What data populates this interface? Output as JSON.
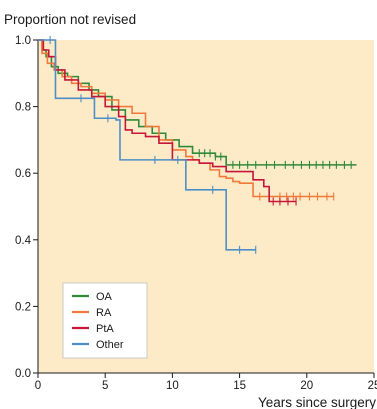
{
  "chart_data": {
    "type": "line",
    "subtype": "kaplan-meier-step",
    "title": "",
    "ylabel": "Proportion not revised",
    "xlabel": "Years since surgery",
    "xlim": [
      0,
      25
    ],
    "ylim": [
      0.0,
      1.0
    ],
    "x_ticks": [
      0,
      5,
      10,
      15,
      20,
      25
    ],
    "x_tick_labels": [
      "0",
      "5",
      "10",
      "15",
      "20",
      "25"
    ],
    "y_ticks": [
      0.0,
      0.2,
      0.4,
      0.6,
      0.8,
      1.0
    ],
    "y_tick_labels": [
      "0.0",
      "0.2",
      "0.4",
      "0.6",
      "0.8",
      "1.0"
    ],
    "grid": false,
    "legend_position": "bottom-left",
    "background_color": "#fdebc8",
    "series": [
      {
        "name": "OA",
        "color": "#2e8b3a",
        "x": [
          0,
          0.3,
          0.6,
          1.0,
          1.5,
          2.2,
          3.0,
          3.8,
          4.5,
          5.5,
          6.5,
          7.5,
          8.5,
          9.5,
          10.5,
          11.5,
          12.5,
          13.2,
          14.0,
          23.7
        ],
        "y": [
          1.0,
          0.97,
          0.95,
          0.92,
          0.9,
          0.89,
          0.87,
          0.85,
          0.83,
          0.79,
          0.76,
          0.74,
          0.72,
          0.7,
          0.68,
          0.66,
          0.66,
          0.65,
          0.625,
          0.625
        ],
        "censored_x": [
          12.0,
          12.4,
          12.8,
          13.2,
          13.6,
          14.5,
          15.0,
          15.6,
          16.2,
          17.0,
          17.6,
          18.4,
          19.0,
          19.6,
          20.2,
          20.7,
          21.2,
          21.7,
          22.2,
          22.8,
          23.3
        ]
      },
      {
        "name": "RA",
        "color": "#f07a3c",
        "x": [
          0,
          0.3,
          0.7,
          1.2,
          1.8,
          2.5,
          3.2,
          4.0,
          5.0,
          6.0,
          7.0,
          8.0,
          9.0,
          10.0,
          11.0,
          11.5,
          12.0,
          12.8,
          13.5,
          14.0,
          14.5,
          15.0,
          16.0,
          22.0
        ],
        "y": [
          1.0,
          0.96,
          0.93,
          0.91,
          0.89,
          0.87,
          0.86,
          0.84,
          0.82,
          0.8,
          0.78,
          0.74,
          0.7,
          0.67,
          0.65,
          0.64,
          0.63,
          0.61,
          0.59,
          0.585,
          0.575,
          0.57,
          0.53,
          0.53
        ],
        "censored_x": [
          16.5,
          17.2,
          18.0,
          18.5,
          19.0,
          19.5,
          20.2,
          20.8,
          21.5,
          22.0
        ]
      },
      {
        "name": "PtA",
        "color": "#c4173a",
        "x": [
          0,
          0.4,
          0.8,
          1.3,
          2.0,
          3.0,
          4.0,
          5.0,
          6.0,
          6.5,
          7.0,
          8.0,
          9.0,
          10.0,
          11.0,
          12.0,
          13.0,
          14.0,
          16.0,
          16.8,
          17.2,
          19.2
        ],
        "y": [
          1.0,
          0.97,
          0.95,
          0.91,
          0.88,
          0.85,
          0.83,
          0.8,
          0.77,
          0.73,
          0.72,
          0.71,
          0.69,
          0.64,
          0.64,
          0.63,
          0.62,
          0.605,
          0.58,
          0.56,
          0.515,
          0.515
        ],
        "censored_x": [
          17.5,
          18.0,
          18.6,
          19.2
        ]
      },
      {
        "name": "Other",
        "color": "#4d8fc6",
        "x": [
          0,
          1.3,
          2.0,
          4.2,
          5.8,
          6.1,
          8.0,
          9.5,
          11.0,
          14.0,
          16.2
        ],
        "y": [
          1.0,
          0.825,
          0.825,
          0.765,
          0.76,
          0.64,
          0.64,
          0.64,
          0.55,
          0.37,
          0.37
        ],
        "censored_x": [
          0.9,
          3.2,
          5.2,
          8.7,
          10.4,
          13.0,
          15.0,
          16.2
        ]
      }
    ]
  }
}
